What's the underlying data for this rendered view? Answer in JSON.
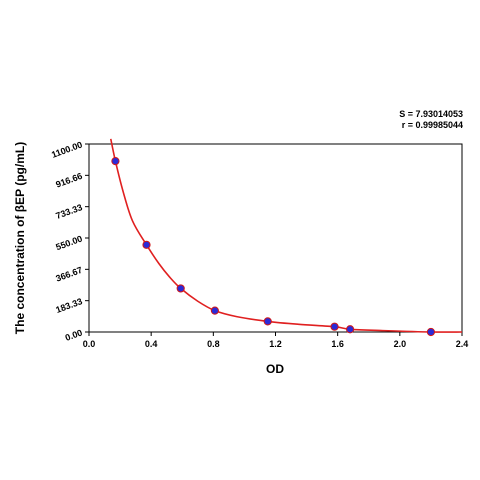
{
  "chart_data": {
    "type": "scatter",
    "title": "",
    "xlabel": "OD",
    "ylabel": "The concentration of βEP (pg/mL)",
    "xlim": [
      0,
      2.4
    ],
    "ylim": [
      0,
      1100
    ],
    "x_ticks": [
      "0.0",
      "0.4",
      "0.8",
      "1.2",
      "1.6",
      "2.0",
      "2.4"
    ],
    "x_tick_values": [
      0,
      0.4,
      0.8,
      1.2,
      1.6,
      2.0,
      2.4
    ],
    "y_ticks": [
      "0.00",
      "183.33",
      "366.67",
      "550.00",
      "733.33",
      "916.66",
      "1100.00"
    ],
    "y_tick_values": [
      0,
      183.33,
      366.67,
      550,
      733.33,
      916.66,
      1100
    ],
    "grid": false,
    "points": {
      "x": [
        0.17,
        0.37,
        0.59,
        0.81,
        1.15,
        1.58,
        1.68,
        2.2
      ],
      "y": [
        1000,
        510,
        255,
        125,
        62,
        31,
        16,
        0
      ]
    },
    "fit_curve": {
      "x": [
        0.14,
        0.17,
        0.22,
        0.28,
        0.37,
        0.45,
        0.52,
        0.59,
        0.7,
        0.81,
        0.95,
        1.15,
        1.35,
        1.58,
        1.68,
        1.9,
        2.2,
        2.4
      ],
      "y": [
        1130,
        1000,
        820,
        650,
        510,
        400,
        320,
        255,
        180,
        125,
        90,
        62,
        45,
        31,
        16,
        8,
        0,
        0
      ]
    },
    "stats": {
      "s": "S = 7.93014053",
      "r": "r = 0.99985044"
    },
    "colors": {
      "curve": "#e02020",
      "point_fill": "#2a2ad8",
      "point_edge": "#d01818",
      "axis": "#000000"
    }
  }
}
